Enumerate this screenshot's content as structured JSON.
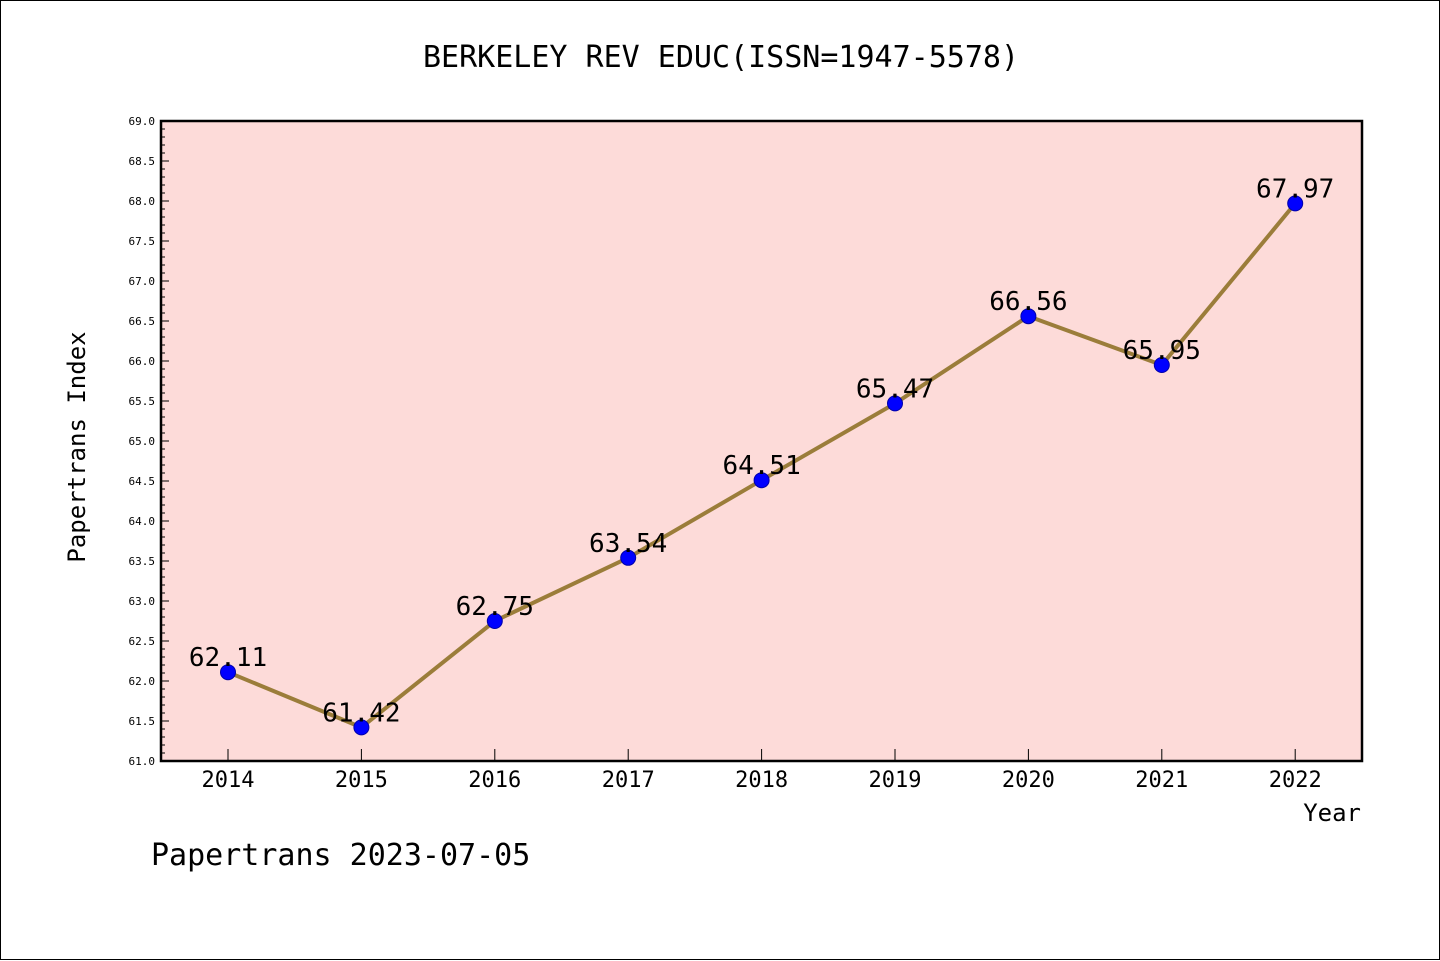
{
  "chart_data": {
    "type": "line",
    "title": "BERKELEY REV EDUC(ISSN=1947-5578)",
    "xlabel": "Year",
    "ylabel": "Papertrans Index",
    "categories": [
      "2014",
      "2015",
      "2016",
      "2017",
      "2018",
      "2019",
      "2020",
      "2021",
      "2022"
    ],
    "values": [
      62.11,
      61.42,
      62.75,
      63.54,
      64.51,
      65.47,
      66.56,
      65.95,
      67.97
    ],
    "data_labels": [
      "62.11",
      "61.42",
      "62.75",
      "63.54",
      "64.51",
      "65.47",
      "66.56",
      "65.95",
      "67.97"
    ],
    "ylim": [
      61.0,
      69.0
    ],
    "yticks": [
      "61.0",
      "61.5",
      "62.0",
      "62.5",
      "63.0",
      "63.5",
      "64.0",
      "64.5",
      "65.0",
      "65.5",
      "66.0",
      "66.5",
      "67.0",
      "67.5",
      "68.0",
      "68.5",
      "69.0"
    ],
    "grid": false,
    "legend": "none",
    "colors": {
      "plot_background": "#fddbd9",
      "line": "#9b7d3a",
      "marker": "#0000ff"
    }
  },
  "footer": {
    "watermark": "Papertrans 2023-07-05"
  }
}
